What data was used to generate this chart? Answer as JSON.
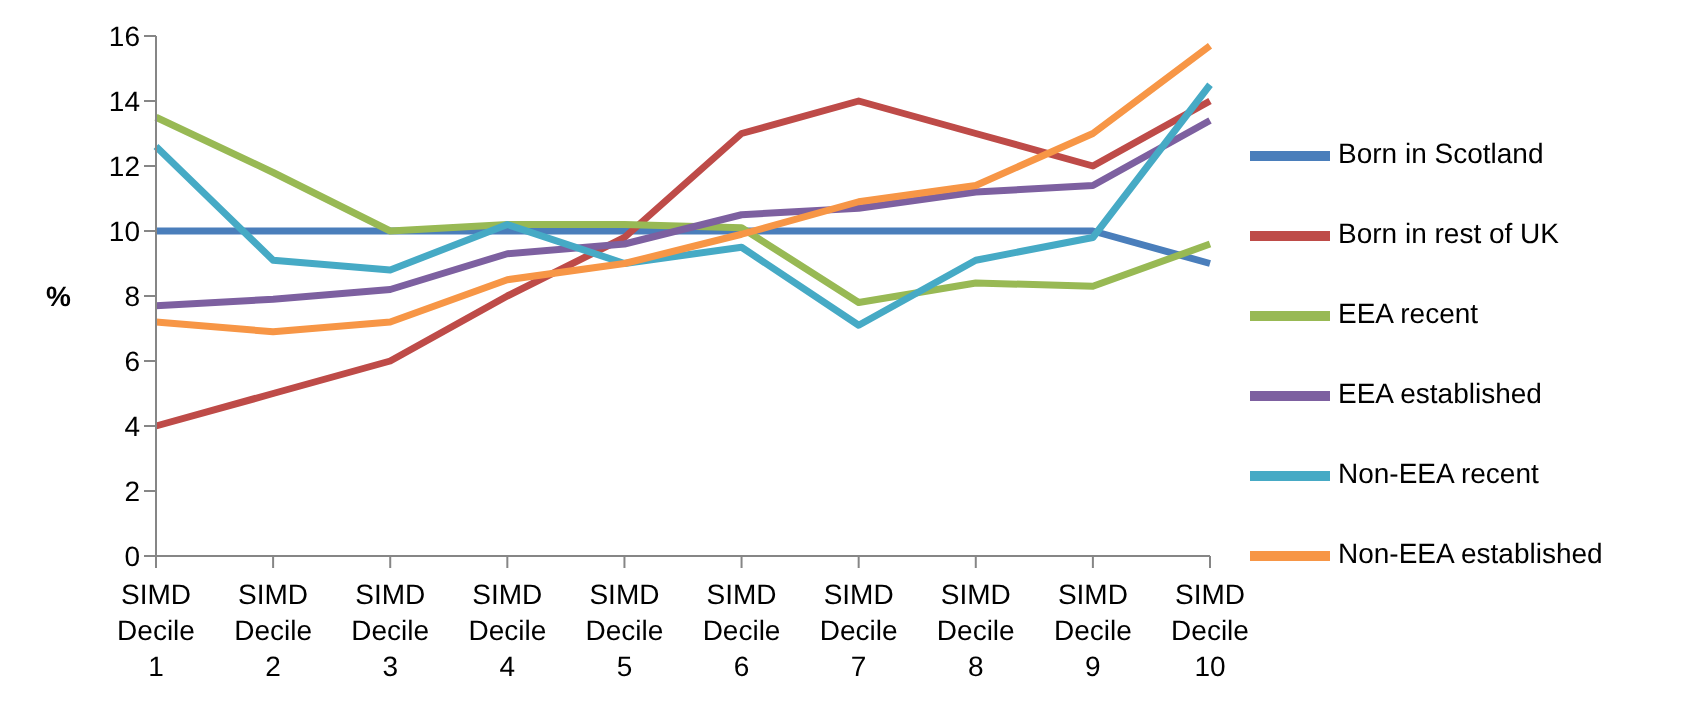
{
  "chart_data": {
    "type": "line",
    "ylabel": "%",
    "categories": [
      "SIMD Decile 1",
      "SIMD Decile 2",
      "SIMD Decile 3",
      "SIMD Decile 4",
      "SIMD Decile 5",
      "SIMD Decile 6",
      "SIMD Decile 7",
      "SIMD Decile 8",
      "SIMD Decile 9",
      "SIMD Decile 10"
    ],
    "series": [
      {
        "name": "Born in Scotland",
        "color": "#4a7ebb",
        "values": [
          10,
          10,
          10,
          10,
          10,
          10,
          10,
          10,
          10,
          9
        ]
      },
      {
        "name": "Born in rest of UK",
        "color": "#be4b48",
        "values": [
          4,
          5,
          6,
          8,
          9.8,
          13,
          14,
          13,
          12,
          14
        ]
      },
      {
        "name": "EEA recent",
        "color": "#98b954",
        "values": [
          13.5,
          11.8,
          10,
          10.2,
          10.2,
          10.1,
          7.8,
          8.4,
          8.3,
          9.6
        ]
      },
      {
        "name": "EEA established",
        "color": "#7d60a0",
        "values": [
          7.7,
          7.9,
          8.2,
          9.3,
          9.6,
          10.5,
          10.7,
          11.2,
          11.4,
          13.4
        ]
      },
      {
        "name": "Non-EEA recent",
        "color": "#46aac5",
        "values": [
          12.6,
          9.1,
          8.8,
          10.2,
          9,
          9.5,
          7.1,
          9.1,
          9.8,
          14.5
        ]
      },
      {
        "name": "Non-EEA established",
        "color": "#f79646",
        "values": [
          7.2,
          6.9,
          7.2,
          8.5,
          9,
          9.9,
          10.9,
          11.4,
          13,
          15.7
        ]
      }
    ],
    "ylim": [
      0,
      16
    ],
    "yticks": [
      0,
      2,
      4,
      6,
      8,
      10,
      12,
      14,
      16
    ],
    "grid": false,
    "legend": "right",
    "marker": "none",
    "line_style": "solid"
  }
}
